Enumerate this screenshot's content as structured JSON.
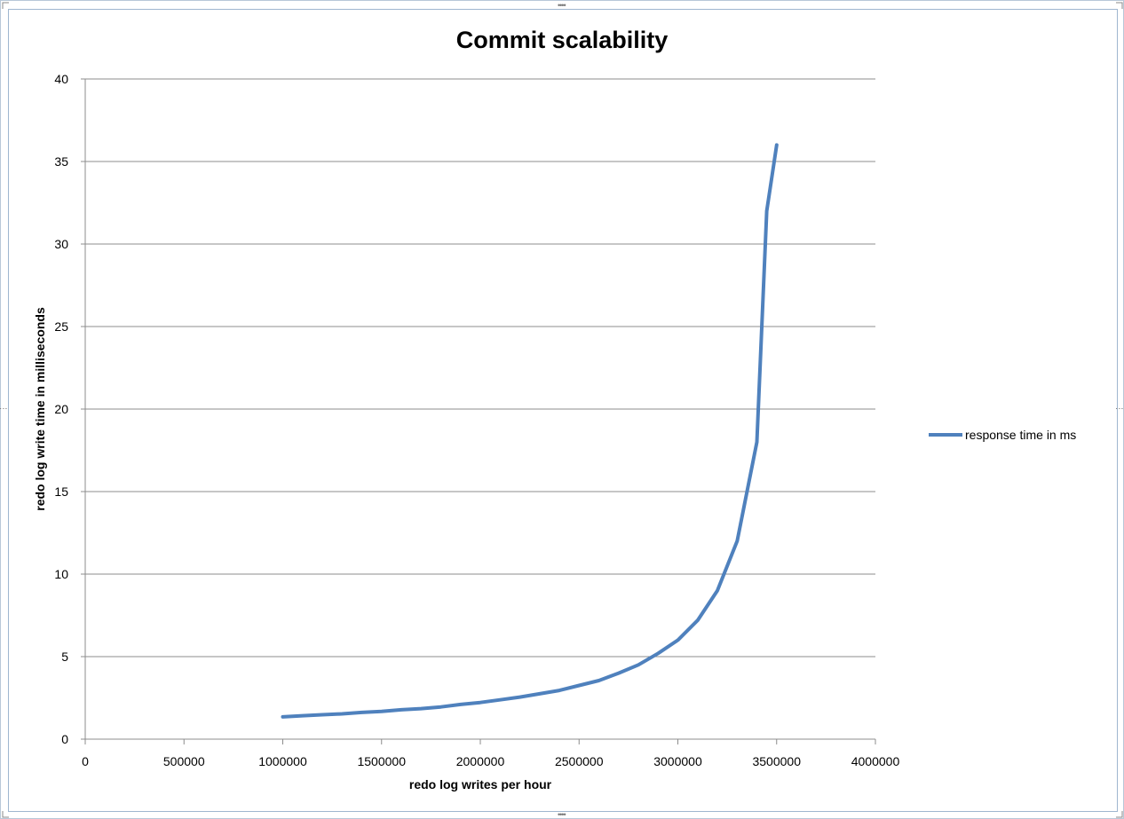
{
  "chart_data": {
    "type": "line",
    "title": "Commit scalability",
    "xlabel": "redo log writes per hour",
    "ylabel": "redo log write time in milliseconds",
    "xlim": [
      0,
      4000000
    ],
    "ylim": [
      0,
      40
    ],
    "x_ticks": [
      "0",
      "500000",
      "1000000",
      "1500000",
      "2000000",
      "2500000",
      "3000000",
      "3500000",
      "4000000"
    ],
    "y_ticks": [
      "0",
      "5",
      "10",
      "15",
      "20",
      "25",
      "30",
      "35",
      "40"
    ],
    "grid": "horizontal",
    "legend_position": "right",
    "series": [
      {
        "name": "response time in ms",
        "color": "#4f81bd",
        "x": [
          1000000,
          1100000,
          1200000,
          1300000,
          1400000,
          1500000,
          1600000,
          1700000,
          1800000,
          1900000,
          2000000,
          2100000,
          2200000,
          2300000,
          2400000,
          2500000,
          2600000,
          2700000,
          2800000,
          2900000,
          3000000,
          3100000,
          3200000,
          3300000,
          3400000,
          3450000,
          3500000
        ],
        "y": [
          1.35,
          1.42,
          1.48,
          1.53,
          1.62,
          1.68,
          1.78,
          1.85,
          1.95,
          2.1,
          2.22,
          2.38,
          2.55,
          2.75,
          2.95,
          3.25,
          3.55,
          4.0,
          4.5,
          5.2,
          6.0,
          7.2,
          9.0,
          12.0,
          18.0,
          32.0,
          36.0
        ]
      }
    ]
  }
}
